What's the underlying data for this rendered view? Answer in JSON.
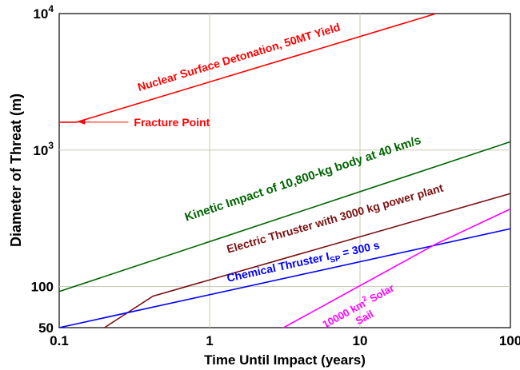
{
  "chart_data": {
    "type": "line",
    "xlabel": "Time Until Impact (years)",
    "ylabel": "Diameter of Threat (m)",
    "x_scale": "log",
    "y_scale": "log",
    "xlim": [
      0.1,
      100
    ],
    "ylim": [
      50,
      10000
    ],
    "grid": true,
    "x_ticks": [
      {
        "value": 0.1,
        "label": "0.1"
      },
      {
        "value": 1,
        "label": "1"
      },
      {
        "value": 10,
        "label": "10"
      },
      {
        "value": 100,
        "label": "100"
      }
    ],
    "y_ticks": [
      {
        "value": 50,
        "base": "50",
        "exp": ""
      },
      {
        "value": 100,
        "base": "100",
        "exp": ""
      },
      {
        "value": 1000,
        "base": "10",
        "exp": "3"
      },
      {
        "value": 10000,
        "base": "10",
        "exp": "4"
      }
    ],
    "series": [
      {
        "key": "nuclear",
        "label": "Nuclear Surface Detonation, 50MT Yield",
        "color": "#ff0000",
        "x": [
          0.1,
          0.13,
          32
        ],
        "y": [
          1600,
          1600,
          10000
        ]
      },
      {
        "key": "kinetic",
        "label": "Kinetic Impact of 10,800-kg body at 40 km/s",
        "color": "#006400",
        "x": [
          0.1,
          100
        ],
        "y": [
          92,
          1150
        ]
      },
      {
        "key": "electric",
        "label": "Electric Thruster with 3000 kg power plant",
        "color": "#7a1010",
        "x": [
          0.2,
          0.42,
          100
        ],
        "y": [
          50,
          85,
          480
        ]
      },
      {
        "key": "chemical",
        "label": "Chemical Thruster",
        "sub_main": "I",
        "sub_text": "SP",
        "suffix": " = 300 s",
        "color": "#0000ff",
        "x": [
          0.1,
          100
        ],
        "y": [
          50,
          265
        ]
      },
      {
        "key": "solar",
        "label_line1_main": "10000 km",
        "label_line1_sup": "2",
        "label_line1_rest": " Solar",
        "label_line2": "Sail",
        "color": "#ff00ff",
        "x": [
          3.1,
          32,
          100
        ],
        "y": [
          50,
          205,
          370
        ]
      }
    ],
    "annotations": [
      {
        "text": "Fracture Point",
        "color": "#ff0000",
        "arrow_to_x": 0.13,
        "arrow_to_y": 1600
      }
    ]
  }
}
